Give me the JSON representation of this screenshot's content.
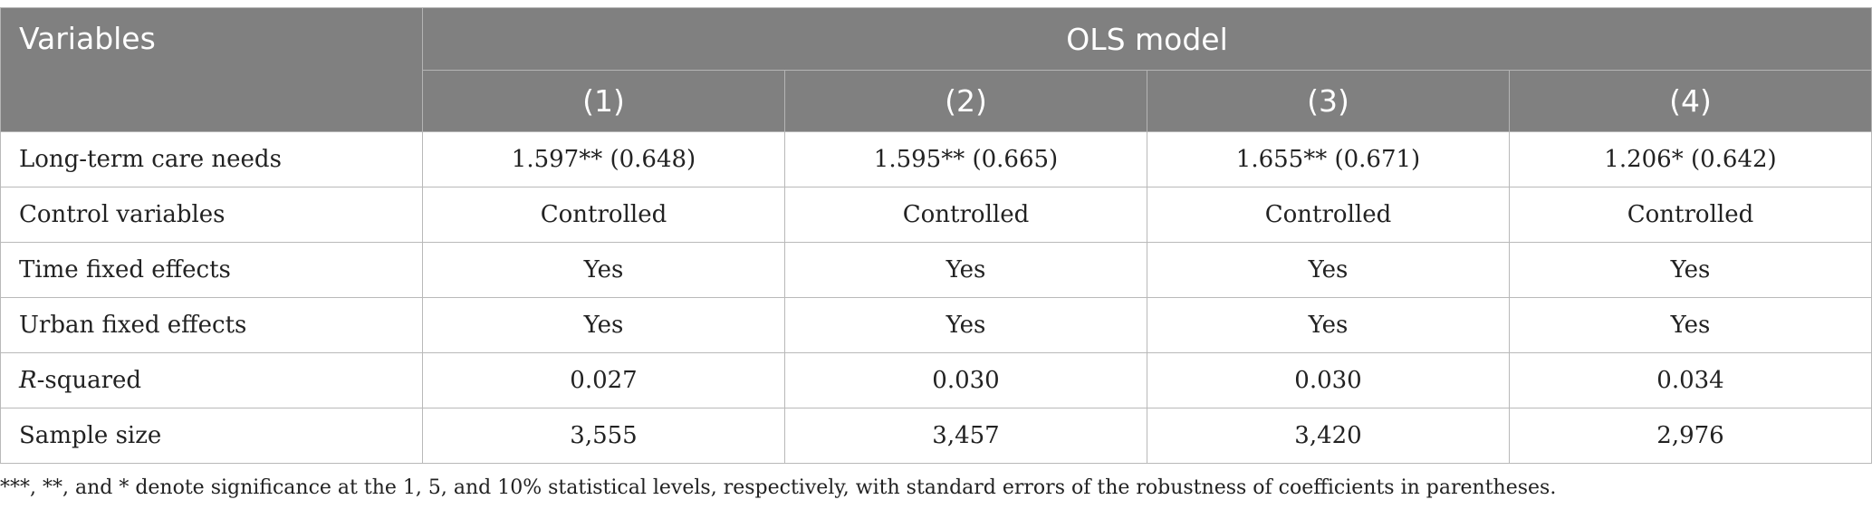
{
  "table": {
    "header": {
      "variables_label": "Variables",
      "group_label": "OLS model",
      "columns": [
        "(1)",
        "(2)",
        "(3)",
        "(4)"
      ]
    },
    "rows": [
      {
        "label": "Long-term care needs",
        "cells": [
          "1.597** (0.648)",
          "1.595** (0.665)",
          "1.655** (0.671)",
          "1.206* (0.642)"
        ]
      },
      {
        "label": "Control variables",
        "cells": [
          "Controlled",
          "Controlled",
          "Controlled",
          "Controlled"
        ]
      },
      {
        "label": "Time fixed effects",
        "cells": [
          "Yes",
          "Yes",
          "Yes",
          "Yes"
        ]
      },
      {
        "label": "Urban fixed effects",
        "cells": [
          "Yes",
          "Yes",
          "Yes",
          "Yes"
        ]
      },
      {
        "label_italic": "R",
        "label_rest": "-squared",
        "cells": [
          "0.027",
          "0.030",
          "0.030",
          "0.034"
        ]
      },
      {
        "label": "Sample size",
        "cells": [
          "3,555",
          "3,457",
          "3,420",
          "2,976"
        ]
      }
    ]
  },
  "footnote": "***, **, and * denote significance at the 1, 5, and 10% statistical levels, respectively, with standard errors of the robustness of coefficients in parentheses."
}
